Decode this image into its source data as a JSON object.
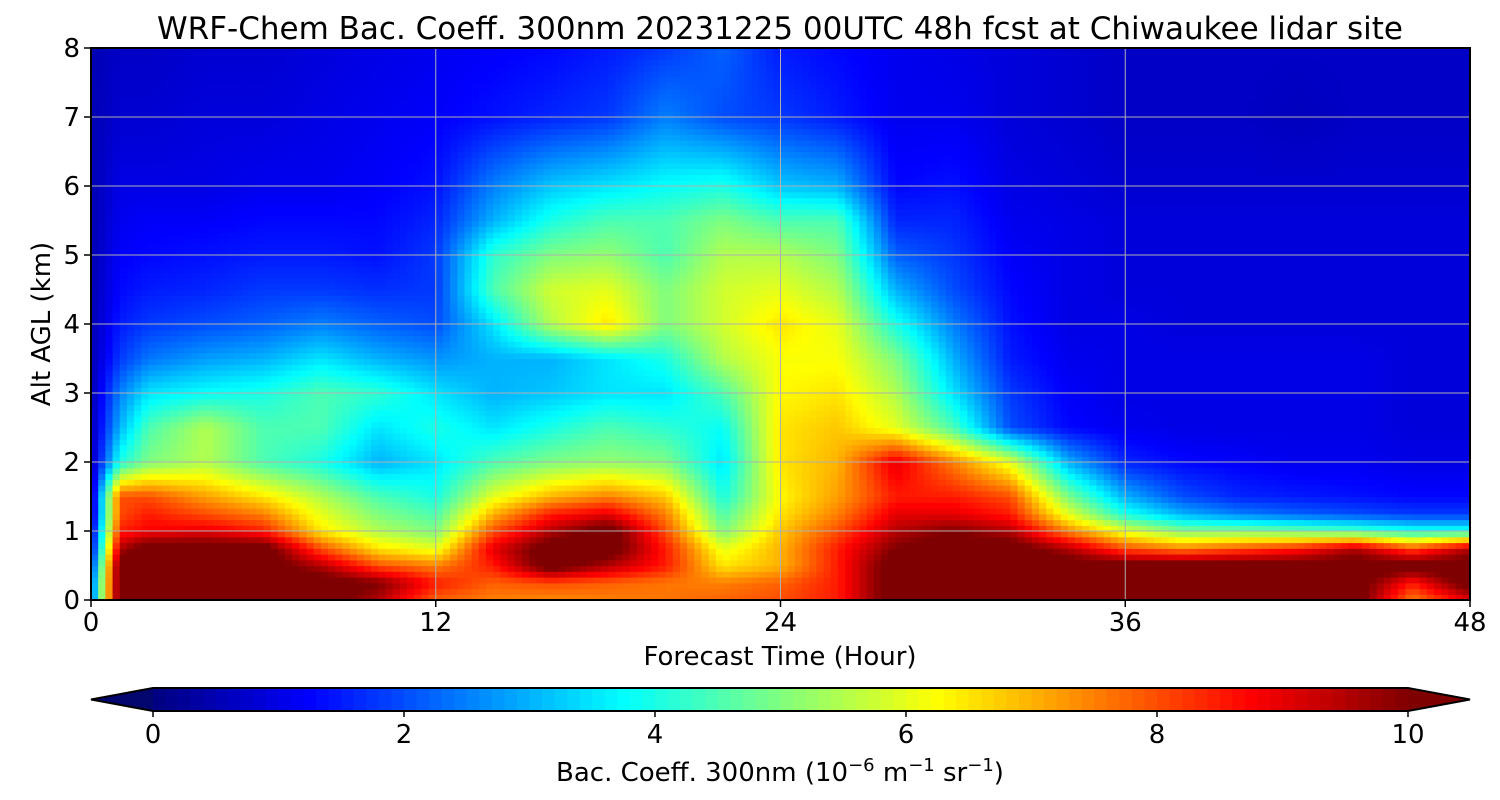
{
  "chart_data": {
    "type": "heatmap",
    "title": "WRF-Chem Bac. Coeff. 300nm  20231225 00UTC 48h fcst at Chiwaukee lidar site",
    "xlabel": "Forecast Time (Hour)",
    "ylabel": "Alt AGL (km)",
    "xlim": [
      0,
      48
    ],
    "ylim": [
      0,
      8
    ],
    "xticks": [
      "0",
      "12",
      "24",
      "36",
      "48"
    ],
    "yticks": [
      "0",
      "1",
      "2",
      "3",
      "4",
      "5",
      "6",
      "7",
      "8"
    ],
    "grid": true,
    "colorbar": {
      "label_prefix": "Bac. Coeff. 300nm  (10",
      "label_exp1": "−6",
      "label_mid": " m",
      "label_exp2": "−1",
      "label_mid2": " sr",
      "label_exp3": "−1",
      "label_suffix": ")",
      "range": [
        0,
        10
      ],
      "ticks": [
        "0",
        "2",
        "4",
        "6",
        "8",
        "10"
      ],
      "colormap": "jet",
      "extend": "both",
      "under_color": "#03066f",
      "over_color": "#7f0000"
    },
    "x": [
      0,
      1,
      2,
      4,
      6,
      8,
      10,
      12,
      14,
      16,
      18,
      20,
      22,
      24,
      26,
      28,
      30,
      32,
      34,
      36,
      38,
      40,
      42,
      44,
      46,
      48
    ],
    "y": [
      0,
      0.25,
      0.5,
      0.75,
      1,
      1.25,
      1.5,
      2,
      2.5,
      3,
      3.5,
      4,
      4.5,
      5,
      5.5,
      6,
      7,
      8
    ],
    "z": [
      [
        2.0,
        10.5,
        10.5,
        10.5,
        10.5,
        10.5,
        9.5,
        7.8,
        7.5,
        7.4,
        7.5,
        7.6,
        7.8,
        8.0,
        8.5,
        10.5,
        10.5,
        10.5,
        10.5,
        10.5,
        10.5,
        10.5,
        10.5,
        10.5,
        7.5,
        9.0
      ],
      [
        2.0,
        10.5,
        10.5,
        10.5,
        10.5,
        10.5,
        10.0,
        8.5,
        7.8,
        8.0,
        7.8,
        7.6,
        7.5,
        7.8,
        8.5,
        10.5,
        10.5,
        10.5,
        10.5,
        10.5,
        10.5,
        10.5,
        10.5,
        10.5,
        8.5,
        10.5
      ],
      [
        1.5,
        10.5,
        10.5,
        10.5,
        10.5,
        9.5,
        8.0,
        7.5,
        8.5,
        10.5,
        9.5,
        8.5,
        6.5,
        7.0,
        8.5,
        10.5,
        10.5,
        10.5,
        10.5,
        10.5,
        10.5,
        10.5,
        10.5,
        10.5,
        10.5,
        10.5
      ],
      [
        1.0,
        9.5,
        10.5,
        10.5,
        10.5,
        8.0,
        6.5,
        6.0,
        9.0,
        10.5,
        10.5,
        8.5,
        6.0,
        7.0,
        8.5,
        10.0,
        10.5,
        10.5,
        9.5,
        8.0,
        7.5,
        8.0,
        8.5,
        9.5,
        8.0,
        9.5
      ],
      [
        0.8,
        8.5,
        8.8,
        9.0,
        8.5,
        6.5,
        5.5,
        5.0,
        8.0,
        9.5,
        10.5,
        8.0,
        5.0,
        6.8,
        8.0,
        9.5,
        10.0,
        9.5,
        7.5,
        6.0,
        5.0,
        5.0,
        4.8,
        4.5,
        4.0,
        4.0
      ],
      [
        0.5,
        8.0,
        8.5,
        8.0,
        7.5,
        6.0,
        5.0,
        4.5,
        7.0,
        8.5,
        9.0,
        7.5,
        4.5,
        6.5,
        7.5,
        9.0,
        9.0,
        8.5,
        6.0,
        4.0,
        3.0,
        2.5,
        2.2,
        2.0,
        1.8,
        1.8
      ],
      [
        0.5,
        8.0,
        8.0,
        7.2,
        6.5,
        5.5,
        4.5,
        4.0,
        6.0,
        7.0,
        7.5,
        6.8,
        4.0,
        6.3,
        7.2,
        8.5,
        8.5,
        8.0,
        5.0,
        3.0,
        2.0,
        1.6,
        1.5,
        1.4,
        1.3,
        1.3
      ],
      [
        0.5,
        4.0,
        5.0,
        5.5,
        4.5,
        4.0,
        3.0,
        3.5,
        4.5,
        5.0,
        5.2,
        5.0,
        3.5,
        6.5,
        7.0,
        9.0,
        7.5,
        6.0,
        3.0,
        1.6,
        1.3,
        1.2,
        1.1,
        1.1,
        1.0,
        1.0
      ],
      [
        0.5,
        3.0,
        4.5,
        5.5,
        4.5,
        4.5,
        3.5,
        4.0,
        3.5,
        4.0,
        4.5,
        4.2,
        3.8,
        6.5,
        6.8,
        6.0,
        4.5,
        2.0,
        1.3,
        1.1,
        1.0,
        1.0,
        1.0,
        1.0,
        0.9,
        0.9
      ],
      [
        0.5,
        2.5,
        3.5,
        3.8,
        4.0,
        4.5,
        4.2,
        3.5,
        3.0,
        3.2,
        3.5,
        3.5,
        4.5,
        6.3,
        6.5,
        5.5,
        3.5,
        1.8,
        1.2,
        1.0,
        1.0,
        1.0,
        1.0,
        1.0,
        0.9,
        0.9
      ],
      [
        0.5,
        1.8,
        2.4,
        2.8,
        3.0,
        3.5,
        3.0,
        2.7,
        3.0,
        3.0,
        3.5,
        4.0,
        5.5,
        6.2,
        6.2,
        5.0,
        3.0,
        1.5,
        1.1,
        1.0,
        1.0,
        1.0,
        1.0,
        1.0,
        0.9,
        0.9
      ],
      [
        0.5,
        1.5,
        1.8,
        2.0,
        2.2,
        2.5,
        2.2,
        2.0,
        3.5,
        5.5,
        6.5,
        5.0,
        5.8,
        6.5,
        6.0,
        4.0,
        2.5,
        1.4,
        1.0,
        1.0,
        0.9,
        0.9,
        0.9,
        0.9,
        0.9,
        0.9
      ],
      [
        0.5,
        1.3,
        1.5,
        1.6,
        1.8,
        1.8,
        1.7,
        1.8,
        4.5,
        5.8,
        6.0,
        5.0,
        5.8,
        6.0,
        5.5,
        3.0,
        2.0,
        1.3,
        1.0,
        0.9,
        0.9,
        0.9,
        0.9,
        0.9,
        0.9,
        0.9
      ],
      [
        0.5,
        1.2,
        1.3,
        1.4,
        1.5,
        1.5,
        1.4,
        1.8,
        4.2,
        5.0,
        5.2,
        4.5,
        5.5,
        5.5,
        5.0,
        2.2,
        1.8,
        1.2,
        1.0,
        0.9,
        0.9,
        0.9,
        0.9,
        0.9,
        0.9,
        0.9
      ],
      [
        0.5,
        1.1,
        1.2,
        1.2,
        1.3,
        1.3,
        1.3,
        1.6,
        3.0,
        4.0,
        4.5,
        4.5,
        5.0,
        4.5,
        4.5,
        1.6,
        1.6,
        1.1,
        1.0,
        0.9,
        0.9,
        0.9,
        0.9,
        0.9,
        0.9,
        0.9
      ],
      [
        0.5,
        1.0,
        1.0,
        1.0,
        1.1,
        1.1,
        1.2,
        1.4,
        2.5,
        3.2,
        3.5,
        3.8,
        4.0,
        3.2,
        3.0,
        1.3,
        1.4,
        1.0,
        0.9,
        0.8,
        0.8,
        0.8,
        0.8,
        0.8,
        0.8,
        0.8
      ],
      [
        0.5,
        0.8,
        0.8,
        0.9,
        0.9,
        1.0,
        1.1,
        1.2,
        1.4,
        1.6,
        1.8,
        2.5,
        2.0,
        1.8,
        1.5,
        1.1,
        1.1,
        0.9,
        0.8,
        0.7,
        0.7,
        0.7,
        0.6,
        0.7,
        0.7,
        0.7
      ],
      [
        0.5,
        0.7,
        0.7,
        0.8,
        0.8,
        0.9,
        1.0,
        1.1,
        1.2,
        1.3,
        1.5,
        1.8,
        2.2,
        1.5,
        1.3,
        1.1,
        1.0,
        0.9,
        0.8,
        0.7,
        0.7,
        0.7,
        0.7,
        0.7,
        0.7,
        0.7
      ]
    ]
  }
}
